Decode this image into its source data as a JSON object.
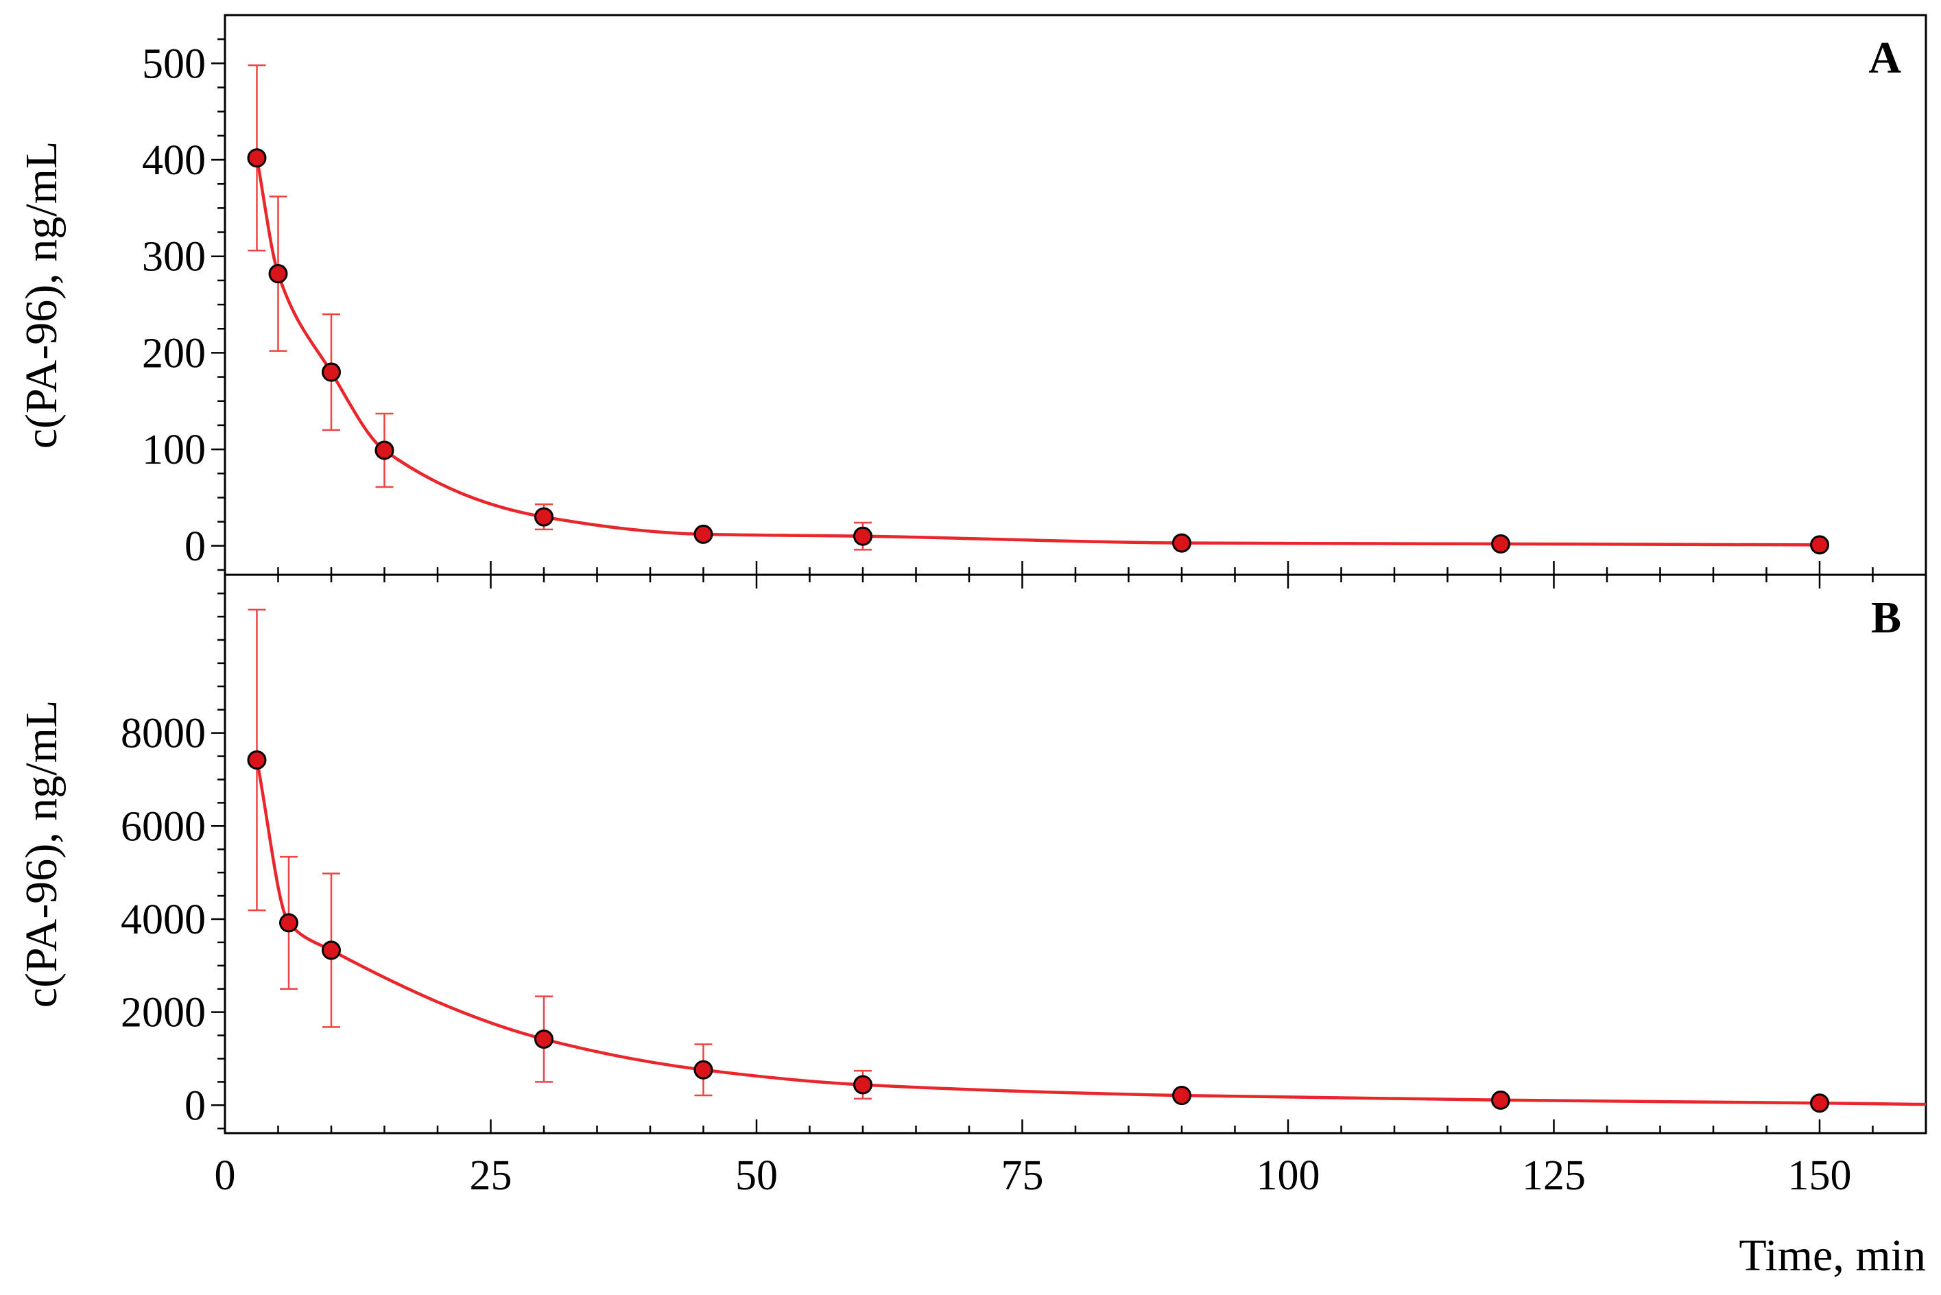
{
  "colors": {
    "series": "#e8262b",
    "marker_fill": "#d9151b",
    "marker_edge": "#000000",
    "error_bar": "#ee4444",
    "axes": "#000000"
  },
  "xlabel": "Time, min",
  "chart_data": [
    {
      "type": "line",
      "panel_label": "A",
      "ylabel": "c(PA-96), ng/mL",
      "xlabel": "Time, min",
      "xlim": [
        0,
        160
      ],
      "ylim": [
        -30,
        550
      ],
      "x_ticks": [
        0,
        25,
        50,
        75,
        100,
        125,
        150
      ],
      "x_tick_labels": [
        "0",
        "25",
        "50",
        "75",
        "100",
        "125",
        "150"
      ],
      "y_ticks": [
        0,
        100,
        200,
        300,
        400,
        500
      ],
      "y_tick_labels": [
        "0",
        "100",
        "200",
        "300",
        "400",
        "500"
      ],
      "grid": false,
      "series": [
        {
          "markers": "circle",
          "x": [
            3,
            5,
            10,
            15,
            30,
            45,
            60,
            90,
            120,
            150
          ],
          "y": [
            402,
            282,
            180,
            99,
            30,
            12,
            10,
            3,
            2,
            1
          ],
          "error": [
            96,
            80,
            60,
            38,
            13,
            0,
            14,
            0,
            0,
            0
          ]
        }
      ]
    },
    {
      "type": "line",
      "panel_label": "B",
      "ylabel": "c(PA-96), ng/mL",
      "xlabel": "Time, min",
      "xlim": [
        0,
        160
      ],
      "ylim": [
        -600,
        11400
      ],
      "x_ticks": [
        0,
        25,
        50,
        75,
        100,
        125,
        150
      ],
      "x_tick_labels": [
        "0",
        "25",
        "50",
        "75",
        "100",
        "125",
        "150"
      ],
      "y_ticks": [
        0,
        2000,
        4000,
        6000,
        8000
      ],
      "y_tick_labels": [
        "0",
        "2000",
        "4000",
        "6000",
        "8000"
      ],
      "grid": false,
      "series": [
        {
          "markers": "circle",
          "x": [
            3,
            6,
            10,
            30,
            45,
            60,
            90,
            120,
            150
          ],
          "y": [
            7420,
            3920,
            3330,
            1420,
            760,
            440,
            210,
            110,
            45
          ],
          "error": [
            3230,
            1420,
            1650,
            920,
            550,
            300,
            0,
            0,
            0
          ]
        }
      ]
    }
  ]
}
